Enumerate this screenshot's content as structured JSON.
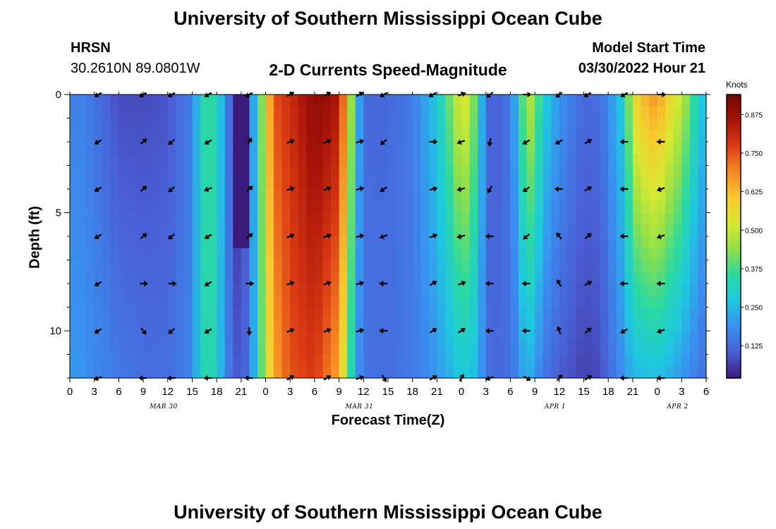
{
  "header": {
    "title": "University of Southern Mississippi Ocean Cube",
    "station": "HRSN",
    "location": "30.2610N  89.0801W",
    "chart_title": "2-D Currents Speed-Magnitude",
    "model_label": "Model Start Time",
    "model_start": "03/30/2022 Hour 21"
  },
  "footer": {
    "title": "University of Southern Mississippi Ocean Cube"
  },
  "colors": {
    "colormap": [
      "#3a1a7a",
      "#4a5fd6",
      "#3a8ff0",
      "#1ec8e0",
      "#2bd9a0",
      "#8fe04a",
      "#d8e830",
      "#f7c830",
      "#f58a22",
      "#dc3c14",
      "#a81208",
      "#6e0804"
    ]
  },
  "chart_data": {
    "type": "heatmap",
    "title": "2-D Currents Speed-Magnitude",
    "xlabel": "Forecast Time(Z)",
    "ylabel": "Depth (ft)",
    "xlim": [
      0,
      78
    ],
    "ylim": [
      12,
      0
    ],
    "x_tick_labels": [
      "0",
      "3",
      "6",
      "9",
      "12",
      "15",
      "18",
      "21",
      "0",
      "3",
      "6",
      "9",
      "12",
      "15",
      "18",
      "21",
      "0",
      "3",
      "6",
      "9",
      "12",
      "15",
      "18",
      "21",
      "0",
      "3",
      "6"
    ],
    "y_ticks": [
      0,
      5,
      10
    ],
    "y_tick_labels": [
      "0",
      "5",
      "10"
    ],
    "date_labels": [
      {
        "label": "MAR 30",
        "hour": 11.5
      },
      {
        "label": "MAR 31",
        "hour": 35.5
      },
      {
        "label": "APR 1",
        "hour": 59.5
      },
      {
        "label": "APR 2",
        "hour": 74.5
      }
    ],
    "colorbar": {
      "title": "Knots",
      "min": 0.02,
      "max": 0.94,
      "ticks": [
        0.125,
        0.25,
        0.375,
        0.5,
        0.625,
        0.75,
        0.875
      ],
      "tick_labels": [
        "0.125",
        "0.250",
        "0.375",
        "0.500",
        "0.625",
        "0.750",
        "0.875"
      ]
    },
    "speed_profile_hours": [
      0,
      1,
      3,
      6,
      9,
      12,
      15,
      16,
      17,
      18,
      19,
      20,
      21,
      22,
      23,
      24,
      25,
      27,
      30,
      33,
      34,
      35,
      36,
      39,
      42,
      45,
      47,
      48,
      49,
      50,
      51,
      52,
      54,
      55,
      56,
      57,
      58,
      60,
      63,
      65,
      66,
      68,
      69,
      70,
      72,
      73,
      75,
      77,
      78
    ],
    "speed_profile_surface": [
      0.15,
      0.17,
      0.14,
      0.08,
      0.08,
      0.09,
      0.16,
      0.3,
      0.38,
      0.32,
      0.2,
      0.06,
      0.02,
      0.15,
      0.3,
      0.55,
      0.75,
      0.8,
      0.9,
      0.85,
      0.6,
      0.3,
      0.12,
      0.12,
      0.15,
      0.28,
      0.45,
      0.55,
      0.5,
      0.35,
      0.12,
      0.1,
      0.15,
      0.28,
      0.5,
      0.45,
      0.3,
      0.2,
      0.12,
      0.13,
      0.18,
      0.3,
      0.55,
      0.62,
      0.68,
      0.6,
      0.5,
      0.3,
      0.25
    ],
    "speed_profile_bottom": [
      0.2,
      0.2,
      0.18,
      0.15,
      0.13,
      0.13,
      0.17,
      0.3,
      0.36,
      0.3,
      0.18,
      0.12,
      0.08,
      0.15,
      0.3,
      0.5,
      0.65,
      0.75,
      0.78,
      0.65,
      0.45,
      0.22,
      0.14,
      0.13,
      0.15,
      0.2,
      0.25,
      0.28,
      0.27,
      0.24,
      0.14,
      0.12,
      0.13,
      0.18,
      0.25,
      0.2,
      0.15,
      0.1,
      0.07,
      0.08,
      0.12,
      0.2,
      0.24,
      0.25,
      0.26,
      0.24,
      0.2,
      0.15,
      0.13
    ],
    "low_speed_bar": {
      "hour_start": 20.5,
      "hour_end": 21.5,
      "depth_start": 0,
      "depth_end": 6.5,
      "speed": 0.01
    },
    "vector_depths": [
      0,
      2,
      4,
      6,
      8,
      10,
      12
    ],
    "vector_hours": [
      3.5,
      9,
      12.5,
      17,
      22,
      27,
      31.5,
      35.5,
      38.5,
      44.5,
      48,
      51.5,
      56,
      60,
      63.5,
      68,
      72.5
    ],
    "vector_directions_deg": [
      [
        210,
        210,
        210,
        210,
        210,
        30,
        30,
        30,
        210,
        210,
        20,
        220,
        0,
        220,
        210,
        210,
        0
      ],
      [
        210,
        40,
        220,
        210,
        60,
        20,
        20,
        15,
        220,
        0,
        200,
        260,
        210,
        210,
        30,
        180,
        180
      ],
      [
        210,
        40,
        220,
        200,
        40,
        20,
        20,
        15,
        215,
        15,
        195,
        240,
        215,
        180,
        30,
        180,
        200
      ],
      [
        210,
        40,
        220,
        210,
        40,
        20,
        20,
        15,
        200,
        20,
        195,
        180,
        220,
        130,
        40,
        180,
        200
      ],
      [
        210,
        0,
        0,
        210,
        0,
        20,
        20,
        15,
        180,
        30,
        20,
        180,
        180,
        120,
        30,
        180,
        180
      ],
      [
        210,
        310,
        220,
        210,
        270,
        20,
        20,
        15,
        180,
        30,
        30,
        180,
        180,
        110,
        40,
        210,
        200
      ],
      [
        200,
        180,
        180,
        180,
        180,
        30,
        30,
        20,
        300,
        30,
        60,
        200,
        330,
        50,
        30,
        180,
        180
      ]
    ]
  }
}
